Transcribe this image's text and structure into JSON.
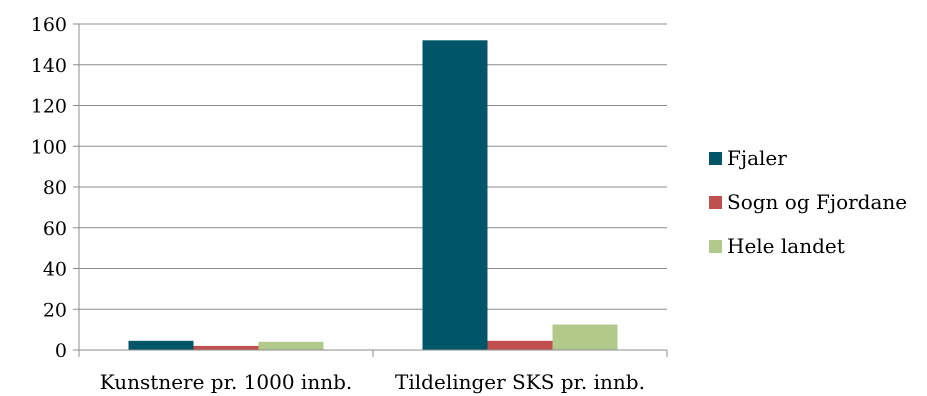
{
  "chart_data": {
    "type": "bar",
    "title": "",
    "xlabel": "",
    "ylabel": "",
    "categories": [
      "Kunstnere pr. 1000 innb.",
      "Tildelinger SKS pr. innb."
    ],
    "series": [
      {
        "name": "Fjaler",
        "color": "#005568",
        "values": [
          4.5,
          152
        ]
      },
      {
        "name": "Sogn og Fjordane",
        "color": "#c0504d",
        "values": [
          2,
          4.5
        ]
      },
      {
        "name": "Hele landet",
        "color": "#b1c98a",
        "values": [
          4,
          12.5
        ]
      }
    ],
    "ylim": [
      0,
      160
    ],
    "yticks": [
      0,
      20,
      40,
      60,
      80,
      100,
      120,
      140,
      160
    ],
    "grid": true,
    "legend_position": "right"
  }
}
